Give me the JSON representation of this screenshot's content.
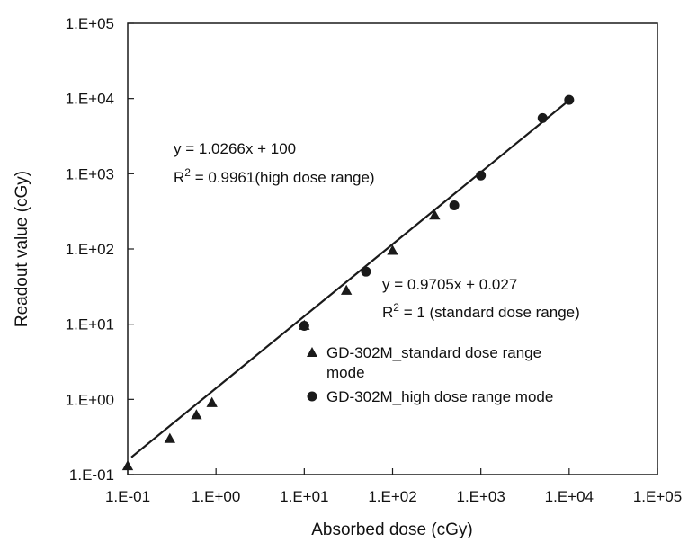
{
  "chart_data": {
    "type": "scatter",
    "x_scale": "log",
    "y_scale": "log",
    "xlim": [
      0.1,
      100000
    ],
    "ylim": [
      0.1,
      100000
    ],
    "xlabel": "Absorbed dose (cGy)",
    "ylabel": "Readout value (cGy)",
    "x_tick_labels": [
      "1.E-01",
      "1.E+00",
      "1.E+01",
      "1.E+02",
      "1.E+03",
      "1.E+04",
      "1.E+05"
    ],
    "y_tick_labels": [
      "1.E-01",
      "1.E+00",
      "1.E+01",
      "1.E+02",
      "1.E+03",
      "1.E+04",
      "1.E+05"
    ],
    "grid": false,
    "legend_position": "center-right",
    "series": [
      {
        "name": "GD-302M_standard dose range mode",
        "name_line1": "GD-302M_standard dose range",
        "name_line2": "mode",
        "marker": "triangle",
        "color": "#1a1a1a",
        "x": [
          0.1,
          0.3,
          0.6,
          0.9,
          10,
          30,
          100,
          300
        ],
        "y": [
          0.13,
          0.3,
          0.62,
          0.9,
          9.6,
          28,
          95,
          280
        ]
      },
      {
        "name": "GD-302M_high dose range mode",
        "marker": "circle",
        "color": "#1a1a1a",
        "x": [
          10,
          50,
          500,
          1000,
          5000,
          10000
        ],
        "y": [
          9.5,
          50,
          380,
          950,
          5500,
          9600
        ]
      }
    ],
    "trendline": {
      "x": [
        0.11,
        10000
      ],
      "y": [
        0.17,
        9500
      ],
      "color": "#1a1a1a"
    },
    "annotations": [
      {
        "id": "high",
        "eq": "y = 1.0266x + 100",
        "r2_prefix": "R",
        "r2_sup": "2",
        "r2_rest": " = 0.9961(high dose range)"
      },
      {
        "id": "standard",
        "eq": "y = 0.9705x + 0.027",
        "r2_prefix": "R",
        "r2_sup": "2",
        "r2_rest": " = 1 (standard dose range)"
      }
    ]
  }
}
